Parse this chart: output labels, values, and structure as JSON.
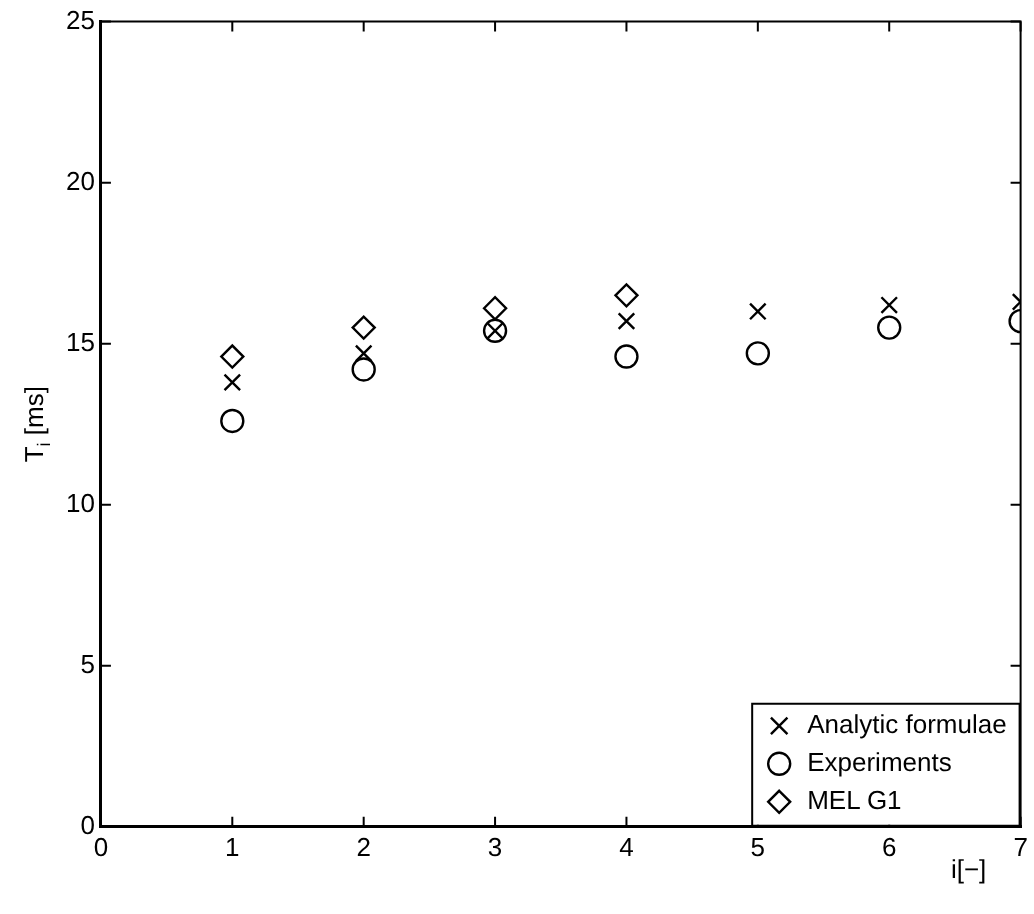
{
  "chart_data": {
    "type": "scatter",
    "xlabel": "i[−]",
    "ylabel": "T$_{i}$ [ms]",
    "x": [
      1,
      2,
      3,
      4,
      5,
      6,
      7
    ],
    "series": [
      {
        "name": "Analytic formulae",
        "color": "#000000",
        "marker": "cross",
        "values": [
          13.8,
          14.7,
          15.4,
          15.7,
          16.0,
          16.2,
          16.3
        ]
      },
      {
        "name": "Experiments",
        "color": "#000000",
        "marker": "circle",
        "values": [
          12.6,
          14.2,
          15.4,
          14.6,
          14.7,
          15.5,
          15.7
        ]
      },
      {
        "name": "MEL G1",
        "color": "#000000",
        "marker": "diamond",
        "x": [
          1,
          2,
          3,
          4
        ],
        "values": [
          14.6,
          15.5,
          16.1,
          16.5
        ]
      }
    ],
    "xlim": [
      0,
      7
    ],
    "xticks": [
      0,
      1,
      2,
      3,
      4,
      5,
      6,
      7
    ],
    "ylim": [
      0,
      25
    ],
    "yticks": [
      0,
      5,
      10,
      15,
      20,
      25
    ],
    "grid": false,
    "legend": "bottom right"
  }
}
